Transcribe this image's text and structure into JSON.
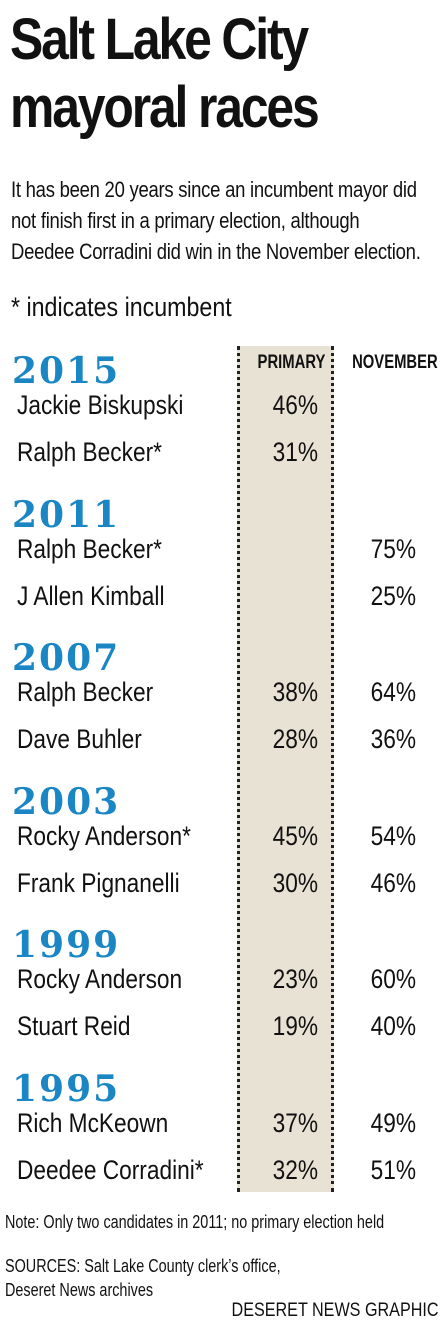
{
  "header": {
    "title_line1": "Salt Lake City",
    "title_line2": "mayoral races",
    "subtitle_lines": [
      "It has been 20 years since an incumbent mayor did",
      "not finish first in a primary election, although",
      "Deedee Corradini did win in the November election."
    ],
    "incumbent_note": "* indicates incumbent"
  },
  "colors": {
    "year": "#1a86c4",
    "primary_band": "#e8e2d4",
    "text": "#111111"
  },
  "chart_data": {
    "type": "table",
    "columns": [
      "PRIMARY",
      "NOVEMBER"
    ],
    "groups": [
      {
        "year": "2015",
        "rows": [
          {
            "name": "Jackie Biskupski",
            "primary": "46%",
            "november": ""
          },
          {
            "name": "Ralph Becker*",
            "primary": "31%",
            "november": ""
          }
        ]
      },
      {
        "year": "2011",
        "rows": [
          {
            "name": "Ralph Becker*",
            "primary": "",
            "november": "75%"
          },
          {
            "name": "J Allen Kimball",
            "primary": "",
            "november": "25%"
          }
        ]
      },
      {
        "year": "2007",
        "rows": [
          {
            "name": "Ralph Becker",
            "primary": "38%",
            "november": "64%"
          },
          {
            "name": "Dave Buhler",
            "primary": "28%",
            "november": "36%"
          }
        ]
      },
      {
        "year": "2003",
        "rows": [
          {
            "name": "Rocky Anderson*",
            "primary": "45%",
            "november": "54%"
          },
          {
            "name": "Frank Pignanelli",
            "primary": "30%",
            "november": "46%"
          }
        ]
      },
      {
        "year": "1999",
        "rows": [
          {
            "name": "Rocky Anderson",
            "primary": "23%",
            "november": "60%"
          },
          {
            "name": "Stuart Reid",
            "primary": "19%",
            "november": "40%"
          }
        ]
      },
      {
        "year": "1995",
        "rows": [
          {
            "name": "Rich McKeown",
            "primary": "37%",
            "november": "49%"
          },
          {
            "name": "Deedee Corradini*",
            "primary": "32%",
            "november": "51%"
          }
        ]
      }
    ]
  },
  "footer": {
    "note": "Note:  Only two candidates in 2011; no primary election held",
    "sources_line1": "SOURCES:  Salt Lake County clerk’s office,",
    "sources_line2": "Deseret News archives",
    "credit": "DESERET NEWS GRAPHIC"
  }
}
